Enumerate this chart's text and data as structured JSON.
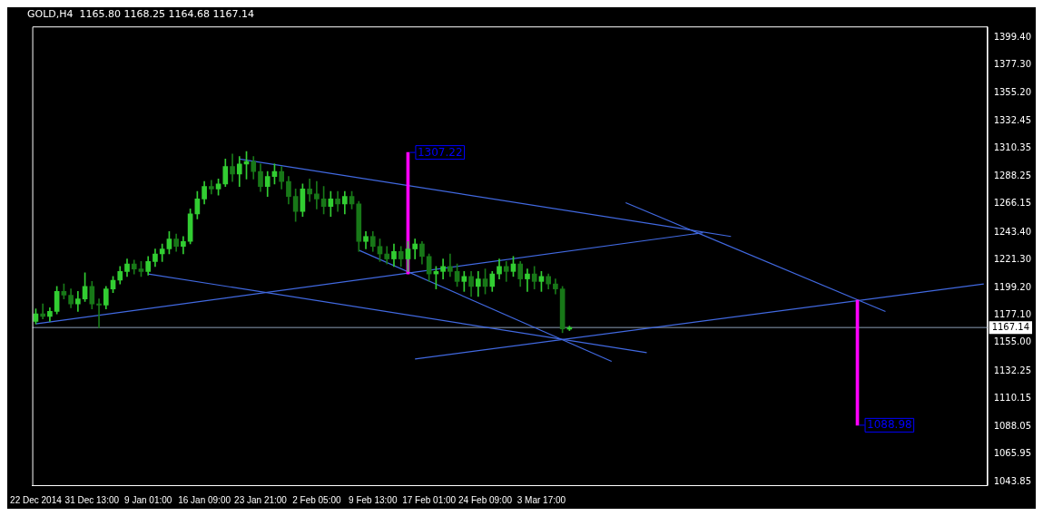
{
  "chart_data": {
    "type": "candlestick",
    "title": "GOLD,H4  1165.80 1168.25 1164.68 1167.14",
    "colors": [
      "#32cd32",
      "#187818",
      "#32cd32",
      "#32cd32",
      "#187818",
      "#187818",
      "#32cd32",
      "#32cd32",
      "#187818",
      "#187818",
      "#32cd32",
      "#32cd32",
      "#32cd32",
      "#32cd32",
      "#187818",
      "#187818",
      "#32cd32",
      "#32cd32",
      "#32cd32",
      "#32cd32",
      "#187818",
      "#32cd32",
      "#32cd32",
      "#32cd32",
      "#32cd32",
      "#187818",
      "#32cd32",
      "#32cd32",
      "#187818",
      "#32cd32",
      "#32cd32",
      "#187818",
      "#187818",
      "#32cd32",
      "#32cd32",
      "#187818",
      "#187818",
      "#187818",
      "#32cd32",
      "#187818",
      "#187818",
      "#187818",
      "#32cd32",
      "#187818",
      "#32cd32",
      "#187818",
      "#187818",
      "#32cd32",
      "#187818",
      "#187818",
      "#187818",
      "#32cd32",
      "#187818",
      "#32cd32",
      "#32cd32",
      "#187818",
      "#187818",
      "#32cd32",
      "#32cd32",
      "#187818",
      "#187818",
      "#32cd32",
      "#187818",
      "#32cd32",
      "#187818",
      "#32cd32",
      "#32cd32",
      "#187818",
      "#32cd32",
      "#187818",
      "#32cd32",
      "#187818",
      "#32cd32",
      "#187818",
      "#187818",
      "#187818",
      "#32cd32",
      null,
      null,
      null,
      null,
      null,
      null,
      null,
      null,
      null,
      null,
      null,
      null,
      null,
      null,
      null,
      null,
      null,
      null,
      null,
      null,
      null,
      null,
      null,
      null,
      null,
      null,
      null,
      null,
      null,
      null,
      null,
      null,
      null,
      null,
      null,
      null,
      null,
      null,
      null,
      null,
      null,
      null,
      null,
      null,
      null,
      null,
      null,
      null,
      null,
      null,
      null,
      null,
      null,
      null,
      null,
      null,
      null,
      null,
      null
    ],
    "categories": [
      "22 Dec 2014",
      null,
      null,
      null,
      null,
      null,
      null,
      null,
      "31 Dec 13:00",
      null,
      null,
      null,
      null,
      null,
      null,
      null,
      "9 Jan 01:00",
      null,
      null,
      null,
      null,
      null,
      null,
      null,
      "16 Jan 09:00",
      null,
      null,
      null,
      null,
      null,
      null,
      null,
      "23 Jan 21:00",
      null,
      null,
      null,
      null,
      null,
      null,
      null,
      "2 Feb 05:00",
      null,
      null,
      null,
      null,
      null,
      null,
      null,
      "9 Feb 13:00",
      null,
      null,
      null,
      null,
      null,
      null,
      null,
      "17 Feb 01:00",
      null,
      null,
      null,
      null,
      null,
      null,
      null,
      "24 Feb 09:00",
      null,
      null,
      null,
      null,
      null,
      null,
      null,
      "3 Mar 17:00",
      null,
      null,
      null,
      null,
      null,
      null,
      null,
      null,
      null,
      null,
      null,
      null,
      null,
      null,
      null,
      null,
      null,
      null,
      null,
      null,
      null,
      null,
      null,
      null,
      null,
      null,
      null,
      null,
      null,
      null,
      null,
      null,
      null,
      null,
      null,
      null,
      null,
      null,
      null,
      null,
      null,
      null,
      null,
      null,
      null,
      null,
      null,
      null,
      null,
      null,
      null,
      null,
      null,
      null,
      null,
      null,
      null,
      null,
      null,
      null,
      null,
      null,
      null
    ],
    "ohlc": [
      [
        1172,
        1182,
        1170,
        1178
      ],
      [
        1178,
        1186,
        1174,
        1176
      ],
      [
        1176,
        1183,
        1172,
        1180
      ],
      [
        1180,
        1200,
        1178,
        1196
      ],
      [
        1196,
        1202,
        1190,
        1193
      ],
      [
        1193,
        1198,
        1183,
        1186
      ],
      [
        1186,
        1196,
        1180,
        1190
      ],
      [
        1190,
        1211,
        1188,
        1200
      ],
      [
        1200,
        1204,
        1182,
        1186
      ],
      [
        1186,
        1190,
        1167,
        1185
      ],
      [
        1185,
        1200,
        1182,
        1198
      ],
      [
        1198,
        1208,
        1195,
        1205
      ],
      [
        1205,
        1216,
        1202,
        1212
      ],
      [
        1212,
        1222,
        1208,
        1218
      ],
      [
        1218,
        1221,
        1210,
        1214
      ],
      [
        1214,
        1220,
        1208,
        1212
      ],
      [
        1212,
        1224,
        1209,
        1220
      ],
      [
        1220,
        1230,
        1216,
        1226
      ],
      [
        1226,
        1234,
        1220,
        1230
      ],
      [
        1230,
        1244,
        1226,
        1238
      ],
      [
        1238,
        1242,
        1228,
        1232
      ],
      [
        1232,
        1240,
        1226,
        1236
      ],
      [
        1236,
        1262,
        1234,
        1258
      ],
      [
        1258,
        1276,
        1254,
        1270
      ],
      [
        1270,
        1284,
        1266,
        1280
      ],
      [
        1280,
        1285,
        1274,
        1278
      ],
      [
        1278,
        1286,
        1273,
        1282
      ],
      [
        1282,
        1302,
        1280,
        1296
      ],
      [
        1296,
        1306,
        1284,
        1290
      ],
      [
        1290,
        1304,
        1280,
        1298
      ],
      [
        1298,
        1308,
        1286,
        1300
      ],
      [
        1300,
        1304,
        1286,
        1292
      ],
      [
        1292,
        1298,
        1276,
        1280
      ],
      [
        1280,
        1292,
        1272,
        1288
      ],
      [
        1288,
        1298,
        1282,
        1292
      ],
      [
        1292,
        1296,
        1278,
        1284
      ],
      [
        1284,
        1288,
        1266,
        1272
      ],
      [
        1272,
        1278,
        1252,
        1260
      ],
      [
        1260,
        1282,
        1256,
        1278
      ],
      [
        1278,
        1286,
        1268,
        1274
      ],
      [
        1274,
        1284,
        1262,
        1270
      ],
      [
        1270,
        1280,
        1258,
        1264
      ],
      [
        1264,
        1276,
        1256,
        1270
      ],
      [
        1270,
        1276,
        1260,
        1266
      ],
      [
        1266,
        1276,
        1258,
        1272
      ],
      [
        1272,
        1276,
        1262,
        1266
      ],
      [
        1266,
        1268,
        1228,
        1236
      ],
      [
        1236,
        1244,
        1230,
        1240
      ],
      [
        1240,
        1244,
        1228,
        1232
      ],
      [
        1232,
        1238,
        1220,
        1226
      ],
      [
        1226,
        1232,
        1218,
        1222
      ],
      [
        1222,
        1234,
        1216,
        1228
      ],
      [
        1228,
        1232,
        1216,
        1222
      ],
      [
        1222,
        1236,
        1212,
        1230
      ],
      [
        1230,
        1238,
        1222,
        1234
      ],
      [
        1234,
        1236,
        1218,
        1224
      ],
      [
        1224,
        1226,
        1204,
        1210
      ],
      [
        1210,
        1216,
        1198,
        1212
      ],
      [
        1212,
        1222,
        1206,
        1216
      ],
      [
        1216,
        1226,
        1208,
        1212
      ],
      [
        1212,
        1218,
        1200,
        1204
      ],
      [
        1204,
        1212,
        1196,
        1208
      ],
      [
        1208,
        1212,
        1192,
        1200
      ],
      [
        1200,
        1212,
        1192,
        1206
      ],
      [
        1206,
        1214,
        1194,
        1200
      ],
      [
        1200,
        1212,
        1196,
        1210
      ],
      [
        1210,
        1222,
        1206,
        1216
      ],
      [
        1216,
        1220,
        1204,
        1212
      ],
      [
        1212,
        1224,
        1208,
        1218
      ],
      [
        1218,
        1220,
        1200,
        1206
      ],
      [
        1206,
        1214,
        1196,
        1210
      ],
      [
        1210,
        1216,
        1198,
        1204
      ],
      [
        1204,
        1212,
        1196,
        1208
      ],
      [
        1208,
        1210,
        1198,
        1202
      ],
      [
        1202,
        1206,
        1194,
        1198
      ],
      [
        1198,
        1200,
        1163,
        1166
      ],
      [
        1165.8,
        1168.25,
        1164.68,
        1167.14
      ],
      null,
      null,
      null,
      null,
      null,
      null,
      null,
      null,
      null,
      null,
      null,
      null,
      null,
      null,
      null,
      null,
      null,
      null,
      null,
      null,
      null,
      null,
      null,
      null,
      null,
      null,
      null,
      null,
      null,
      null,
      null,
      null,
      null,
      null,
      null,
      null,
      null,
      null,
      null,
      null,
      null,
      null,
      null,
      null,
      null,
      null,
      null,
      null,
      null,
      null,
      null,
      null,
      null,
      null,
      null,
      null,
      null,
      null,
      null
    ],
    "series": [
      {
        "type": "line",
        "color": "#4169e1",
        "values": [
          null,
          null,
          null,
          null,
          null,
          null,
          null,
          null,
          null,
          null,
          null,
          null,
          null,
          null,
          null,
          null,
          null,
          null,
          null,
          null,
          null,
          null,
          null,
          null,
          null,
          null,
          null,
          null,
          null,
          1302,
          null,
          null,
          null,
          null,
          null,
          null,
          null,
          null,
          null,
          null,
          null,
          null,
          null,
          null,
          null,
          null,
          null,
          null,
          null,
          null,
          null,
          null,
          null,
          null,
          null,
          null,
          null,
          null,
          null,
          null,
          null,
          null,
          null,
          null,
          null,
          null,
          null,
          null,
          null,
          null,
          null,
          null,
          null,
          null,
          null,
          null,
          null,
          null,
          null,
          null,
          null,
          null,
          null,
          null,
          null,
          null,
          null,
          null,
          null,
          null,
          null,
          null,
          null,
          null,
          null,
          null,
          null,
          null,
          null,
          1240,
          null,
          null,
          null,
          null,
          null,
          null,
          null,
          null,
          null,
          null,
          null,
          null,
          null,
          null,
          null,
          null,
          null,
          null,
          null,
          null,
          null,
          null,
          null,
          null,
          null,
          null,
          null,
          null,
          null,
          null,
          null,
          null,
          null,
          null,
          null,
          null
        ]
      },
      {
        "type": "line",
        "color": "#4169e1",
        "values": [
          1170,
          null,
          null,
          null,
          null,
          null,
          null,
          null,
          null,
          null,
          null,
          null,
          null,
          null,
          null,
          null,
          null,
          null,
          null,
          null,
          null,
          null,
          null,
          null,
          null,
          null,
          null,
          null,
          null,
          null,
          null,
          null,
          null,
          null,
          null,
          null,
          null,
          null,
          null,
          null,
          null,
          null,
          null,
          null,
          null,
          null,
          null,
          null,
          null,
          null,
          null,
          null,
          null,
          null,
          null,
          null,
          null,
          null,
          null,
          null,
          null,
          null,
          null,
          null,
          null,
          null,
          null,
          null,
          null,
          null,
          null,
          null,
          null,
          null,
          null,
          null,
          null,
          null,
          null,
          null,
          null,
          null,
          null,
          null,
          null,
          null,
          null,
          null,
          null,
          null,
          null,
          null,
          null,
          null,
          null,
          1243,
          null,
          null,
          null,
          null,
          null,
          null,
          null,
          null,
          null,
          null,
          null,
          null,
          null,
          null,
          null,
          null,
          null,
          null,
          null,
          null,
          null,
          null,
          null,
          null,
          null,
          null,
          null,
          null,
          null,
          null,
          null,
          null,
          null,
          null,
          null,
          null,
          null,
          null,
          null,
          null
        ]
      },
      {
        "type": "line",
        "color": "#4169e1",
        "values": [
          null,
          null,
          null,
          null,
          null,
          null,
          null,
          null,
          null,
          null,
          null,
          null,
          null,
          null,
          null,
          null,
          1210,
          null,
          null,
          null,
          null,
          null,
          null,
          null,
          null,
          null,
          null,
          null,
          null,
          null,
          null,
          null,
          null,
          null,
          null,
          null,
          null,
          null,
          null,
          null,
          null,
          null,
          null,
          null,
          null,
          null,
          null,
          null,
          null,
          null,
          null,
          null,
          null,
          null,
          null,
          null,
          null,
          null,
          null,
          null,
          null,
          null,
          null,
          null,
          null,
          null,
          null,
          null,
          null,
          null,
          null,
          null,
          null,
          null,
          null,
          null,
          null,
          null,
          null,
          null,
          null,
          null,
          null,
          null,
          null,
          null,
          null,
          1147,
          null,
          null,
          null,
          null,
          null,
          null,
          null,
          null,
          null,
          null,
          null,
          null,
          null,
          null,
          null,
          null,
          null,
          null,
          null,
          null,
          null,
          null,
          null,
          null,
          null,
          null,
          null,
          null,
          null,
          null,
          null,
          null,
          null,
          null,
          null,
          null,
          null,
          null,
          null,
          null,
          null,
          null,
          null,
          null,
          null,
          null,
          null,
          null
        ]
      },
      {
        "type": "line",
        "color": "#4169e1",
        "values": [
          null,
          null,
          null,
          null,
          null,
          null,
          null,
          null,
          null,
          null,
          null,
          null,
          null,
          null,
          null,
          null,
          null,
          null,
          null,
          null,
          null,
          null,
          null,
          null,
          null,
          null,
          null,
          null,
          null,
          null,
          null,
          null,
          null,
          null,
          null,
          null,
          null,
          null,
          null,
          null,
          null,
          null,
          null,
          null,
          null,
          null,
          1229,
          null,
          null,
          null,
          null,
          null,
          null,
          null,
          null,
          null,
          null,
          null,
          null,
          null,
          null,
          null,
          null,
          null,
          null,
          null,
          null,
          null,
          null,
          null,
          null,
          null,
          null,
          null,
          null,
          null,
          null,
          null,
          null,
          null,
          null,
          null,
          1140,
          null,
          null,
          null,
          null,
          null,
          null,
          null,
          null,
          null,
          null,
          null,
          null,
          null,
          null,
          null,
          null,
          null,
          null,
          null,
          null,
          null,
          null,
          null,
          null,
          null,
          null,
          null,
          null,
          null,
          null,
          null,
          null,
          null,
          null,
          null,
          null,
          null,
          null,
          null,
          null,
          null,
          null,
          null,
          null,
          null,
          null,
          null,
          null,
          null,
          null,
          null,
          null,
          null
        ]
      },
      {
        "type": "line",
        "color": "#4169e1",
        "values": [
          null,
          null,
          null,
          null,
          null,
          null,
          null,
          null,
          null,
          null,
          null,
          null,
          null,
          null,
          null,
          null,
          null,
          null,
          null,
          null,
          null,
          null,
          null,
          null,
          null,
          null,
          null,
          null,
          null,
          null,
          null,
          null,
          null,
          null,
          null,
          null,
          null,
          null,
          null,
          null,
          null,
          null,
          null,
          null,
          null,
          null,
          null,
          null,
          null,
          null,
          null,
          null,
          null,
          null,
          1142,
          null,
          null,
          null,
          null,
          null,
          null,
          null,
          null,
          null,
          null,
          null,
          null,
          null,
          null,
          null,
          null,
          null,
          null,
          null,
          null,
          null,
          null,
          null,
          null,
          null,
          null,
          null,
          null,
          null,
          null,
          null,
          null,
          null,
          null,
          null,
          null,
          null,
          null,
          null,
          null,
          null,
          null,
          null,
          null,
          null,
          null,
          null,
          null,
          null,
          null,
          null,
          null,
          null,
          null,
          null,
          null,
          null,
          null,
          null,
          null,
          null,
          null,
          null,
          null,
          null,
          null,
          null,
          null,
          null,
          null,
          null,
          null,
          null,
          null,
          null,
          null,
          null,
          null,
          null,
          null,
          1202
        ]
      },
      {
        "type": "line",
        "color": "#4169e1",
        "values": [
          null,
          null,
          null,
          null,
          null,
          null,
          null,
          null,
          null,
          null,
          null,
          null,
          null,
          null,
          null,
          null,
          null,
          null,
          null,
          null,
          null,
          null,
          null,
          null,
          null,
          null,
          null,
          null,
          null,
          null,
          null,
          null,
          null,
          null,
          null,
          null,
          null,
          null,
          null,
          null,
          null,
          null,
          null,
          null,
          null,
          null,
          null,
          null,
          null,
          null,
          null,
          null,
          null,
          null,
          null,
          null,
          null,
          null,
          null,
          null,
          null,
          null,
          null,
          null,
          null,
          null,
          null,
          null,
          null,
          null,
          null,
          null,
          null,
          null,
          null,
          null,
          null,
          null,
          null,
          null,
          null,
          null,
          null,
          null,
          1267,
          null,
          null,
          null,
          null,
          null,
          null,
          null,
          null,
          null,
          null,
          null,
          null,
          null,
          null,
          null,
          null,
          null,
          null,
          null,
          null,
          null,
          null,
          null,
          null,
          null,
          null,
          null,
          null,
          null,
          null,
          null,
          null,
          null,
          null,
          null,
          null,
          1180,
          null,
          null,
          null,
          null,
          null,
          null,
          null,
          null,
          null,
          null,
          null,
          null,
          null,
          null
        ]
      },
      {
        "type": "bar",
        "color": "#ff00ff",
        "base": [
          null,
          null,
          null,
          null,
          null,
          null,
          null,
          null,
          null,
          null,
          null,
          null,
          null,
          null,
          null,
          null,
          null,
          null,
          null,
          null,
          null,
          null,
          null,
          null,
          null,
          null,
          null,
          null,
          null,
          null,
          null,
          null,
          null,
          null,
          null,
          null,
          null,
          null,
          null,
          null,
          null,
          null,
          null,
          null,
          null,
          null,
          null,
          null,
          null,
          null,
          null,
          null,
          null,
          1210,
          null,
          null,
          null,
          null,
          null,
          null,
          null,
          null,
          null,
          null,
          null,
          null,
          null,
          null,
          null,
          null,
          null,
          null,
          null,
          null,
          null,
          null,
          null,
          null,
          null,
          null,
          null,
          null,
          null,
          null,
          null,
          null,
          null,
          null,
          null,
          null,
          null,
          null,
          null,
          null,
          null,
          null,
          null,
          null,
          null,
          null,
          null,
          null,
          null,
          null,
          null,
          null,
          null,
          null,
          null,
          null,
          null,
          null,
          null,
          null,
          null,
          null,
          null,
          1189,
          null,
          null,
          null,
          null,
          null,
          null,
          null,
          null,
          null,
          null,
          null,
          null,
          null,
          null,
          null,
          null,
          null,
          null
        ],
        "values": [
          null,
          null,
          null,
          null,
          null,
          null,
          null,
          null,
          null,
          null,
          null,
          null,
          null,
          null,
          null,
          null,
          null,
          null,
          null,
          null,
          null,
          null,
          null,
          null,
          null,
          null,
          null,
          null,
          null,
          null,
          null,
          null,
          null,
          null,
          null,
          null,
          null,
          null,
          null,
          null,
          null,
          null,
          null,
          null,
          null,
          null,
          null,
          null,
          null,
          null,
          null,
          null,
          null,
          97.22,
          null,
          null,
          null,
          null,
          null,
          null,
          null,
          null,
          null,
          null,
          null,
          null,
          null,
          null,
          null,
          null,
          null,
          null,
          null,
          null,
          null,
          null,
          null,
          null,
          null,
          null,
          null,
          null,
          null,
          null,
          null,
          null,
          null,
          null,
          null,
          null,
          null,
          null,
          null,
          null,
          null,
          null,
          null,
          null,
          null,
          null,
          null,
          null,
          null,
          null,
          null,
          null,
          null,
          null,
          null,
          null,
          null,
          null,
          null,
          null,
          null,
          null,
          null,
          -100.02,
          null,
          null,
          null,
          null,
          null,
          null,
          null,
          null,
          null,
          null,
          null,
          null,
          null,
          null,
          null,
          null,
          null,
          null
        ],
        "value_labels": [
          null,
          null,
          null,
          null,
          null,
          null,
          null,
          null,
          null,
          null,
          null,
          null,
          null,
          null,
          null,
          null,
          null,
          null,
          null,
          null,
          null,
          null,
          null,
          null,
          null,
          null,
          null,
          null,
          null,
          null,
          null,
          null,
          null,
          null,
          null,
          null,
          null,
          null,
          null,
          null,
          null,
          null,
          null,
          null,
          null,
          null,
          null,
          null,
          null,
          null,
          null,
          null,
          null,
          "1307.22",
          null,
          null,
          null,
          null,
          null,
          null,
          null,
          null,
          null,
          null,
          null,
          null,
          null,
          null,
          null,
          null,
          null,
          null,
          null,
          null,
          null,
          null,
          null,
          null,
          null,
          null,
          null,
          null,
          null,
          null,
          null,
          null,
          null,
          null,
          null,
          null,
          null,
          null,
          null,
          null,
          null,
          null,
          null,
          null,
          null,
          null,
          null,
          null,
          null,
          null,
          null,
          null,
          null,
          null,
          null,
          null,
          null,
          null,
          null,
          null,
          null,
          null,
          null,
          "1088.98",
          null,
          null,
          null,
          null,
          null,
          null,
          null,
          null,
          null,
          null,
          null,
          null,
          null,
          null,
          null,
          null,
          null,
          null
        ]
      }
    ],
    "ref_lines": [
      {
        "axis": "y",
        "value": 1167.14,
        "label": "1167.14",
        "color": "#8c9db5"
      }
    ],
    "ylim": [
      1041,
      1408
    ],
    "yticks": [
      {
        "value": 1043.85,
        "label": "1043.85"
      },
      {
        "value": 1065.95,
        "label": "1065.95"
      },
      {
        "value": 1088.05,
        "label": "1088.05"
      },
      {
        "value": 1110.15,
        "label": "1110.15"
      },
      {
        "value": 1132.25,
        "label": "1132.25"
      },
      {
        "value": 1155,
        "label": "1155.00"
      },
      {
        "value": 1177.1,
        "label": "1177.10"
      },
      {
        "value": 1199.2,
        "label": "1199.20"
      },
      {
        "value": 1221.3,
        "label": "1221.30"
      },
      {
        "value": 1243.4,
        "label": "1243.40"
      },
      {
        "value": 1266.15,
        "label": "1266.15"
      },
      {
        "value": 1288.25,
        "label": "1288.25"
      },
      {
        "value": 1310.35,
        "label": "1310.35"
      },
      {
        "value": 1332.45,
        "label": "1332.45"
      },
      {
        "value": 1355.2,
        "label": "1355.20"
      },
      {
        "value": 1377.3,
        "label": "1377.30"
      },
      {
        "value": 1399.4,
        "label": "1399.40"
      }
    ]
  }
}
